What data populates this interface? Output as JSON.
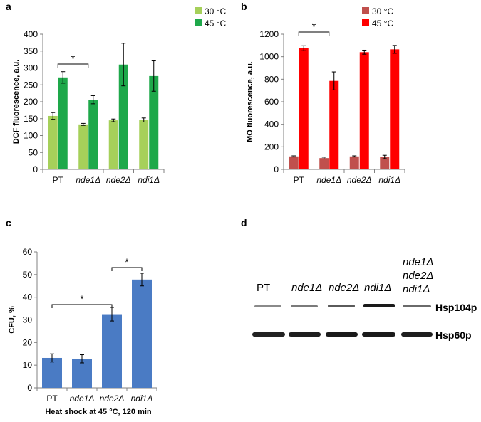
{
  "panels": {
    "a": "a",
    "b": "b",
    "c": "c",
    "d": "d"
  },
  "colors": {
    "a_30": "#a6d05a",
    "a_45": "#1ea84a",
    "b_30": "#c0504d",
    "b_45": "#ff0000",
    "c": "#4a7bc4",
    "axis": "#808080",
    "error": "#000000"
  },
  "chart_data": [
    {
      "type": "bar",
      "panel": "a",
      "categories": [
        "PT",
        "nde1Δ",
        "nde2Δ",
        "ndi1Δ"
      ],
      "category_italic": [
        false,
        true,
        true,
        true
      ],
      "series": [
        {
          "name": "30 °C",
          "values": [
            158,
            133,
            145,
            146
          ],
          "errors": [
            10,
            3,
            4,
            6
          ]
        },
        {
          "name": "45 °C",
          "values": [
            272,
            206,
            310,
            276
          ],
          "errors": [
            17,
            12,
            63,
            45
          ]
        }
      ],
      "ylabel": "DCF fluorescence, a.u.",
      "ylim": [
        0,
        400
      ],
      "yticks": [
        0,
        50,
        100,
        150,
        200,
        250,
        300,
        350,
        400
      ],
      "legend_position": "top-right",
      "significance": [
        {
          "from": "PT",
          "to": "nde1Δ",
          "label": "*"
        }
      ]
    },
    {
      "type": "bar",
      "panel": "b",
      "categories": [
        "PT",
        "nde1Δ",
        "nde2Δ",
        "ndi1Δ"
      ],
      "category_italic": [
        false,
        true,
        true,
        true
      ],
      "series": [
        {
          "name": "30 °C",
          "values": [
            115,
            100,
            115,
            110
          ],
          "errors": [
            5,
            8,
            5,
            15
          ]
        },
        {
          "name": "45 °C",
          "values": [
            1075,
            785,
            1040,
            1065
          ],
          "errors": [
            22,
            80,
            18,
            35
          ]
        }
      ],
      "ylabel": "MO fluorescence, a.u.",
      "ylim": [
        0,
        1200
      ],
      "yticks": [
        0,
        200,
        400,
        600,
        800,
        1000,
        1200
      ],
      "legend_position": "top-right",
      "significance": [
        {
          "from": "PT",
          "to": "nde1Δ",
          "label": "*"
        }
      ]
    },
    {
      "type": "bar",
      "panel": "c",
      "categories": [
        "PT",
        "nde1Δ",
        "nde2Δ",
        "ndi1Δ"
      ],
      "category_italic": [
        false,
        true,
        true,
        true
      ],
      "series": [
        {
          "values": [
            13.2,
            12.8,
            32.5,
            47.8
          ],
          "errors": [
            1.8,
            1.8,
            3.0,
            2.8
          ]
        }
      ],
      "ylabel": "CFU, %",
      "xlabel": "Heat shock at 45 °C, 120 min",
      "ylim": [
        0,
        60
      ],
      "yticks": [
        0,
        10,
        20,
        30,
        40,
        50,
        60
      ],
      "yticklabels": [
        "0",
        "10",
        "20",
        "30",
        "40",
        "50",
        "60"
      ],
      "significance": [
        {
          "from": "PT",
          "to": "nde2Δ",
          "label": "*"
        },
        {
          "from": "nde2Δ",
          "to": "ndi1Δ",
          "label": "*"
        }
      ]
    }
  ],
  "western": {
    "lanes": [
      "PT",
      "nde1Δ",
      "nde2Δ",
      "ndi1Δ"
    ],
    "lane_italic": [
      false,
      true,
      true,
      true
    ],
    "last_lane_lines": [
      "nde1Δ",
      "nde2Δ",
      "ndi1Δ"
    ],
    "band_labels": [
      "Hsp104p",
      "Hsp60p"
    ]
  }
}
